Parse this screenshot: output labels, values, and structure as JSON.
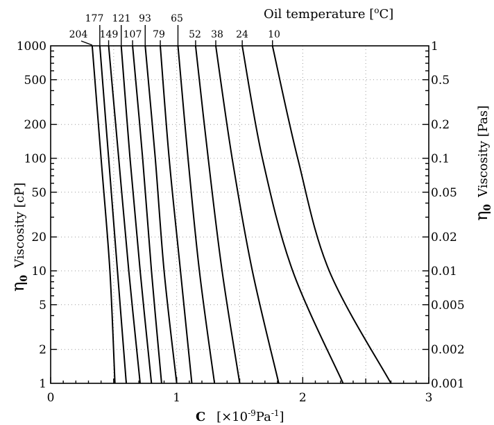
{
  "chart_data": {
    "type": "line",
    "x_axis": {
      "range": [
        0,
        3
      ],
      "ticks": [
        0,
        1,
        2,
        3
      ],
      "tick_labels": [
        "0",
        "1",
        "2",
        "3"
      ],
      "label_symbol": "C",
      "label_unit": "[×10",
      "label_exp": "-9",
      "label_unit2": "Pa",
      "label_exp2": "-1",
      "label_close": "]"
    },
    "y_left": {
      "scale": "log",
      "range": [
        1,
        1000
      ],
      "ticks": [
        1,
        2,
        5,
        10,
        20,
        50,
        100,
        200,
        500,
        1000
      ],
      "tick_labels": [
        "1",
        "2",
        "5",
        "10",
        "20",
        "50",
        "100",
        "200",
        "500",
        "1000"
      ],
      "label_symbol": "η",
      "label_sub": "0",
      "label_text": "Viscosity [cP]"
    },
    "y_right": {
      "scale": "log",
      "range": [
        0.001,
        1
      ],
      "ticks": [
        0.001,
        0.002,
        0.005,
        0.01,
        0.02,
        0.05,
        0.1,
        0.2,
        0.5,
        1
      ],
      "tick_labels": [
        "0.001",
        "0.002",
        "0.005",
        "0.01",
        "0.02",
        "0.05",
        "0.1",
        "0.2",
        "0.5",
        "1"
      ],
      "label_symbol": "η",
      "label_sub": "0",
      "label_text": "Viscosity [Pas]"
    },
    "top_title": "Oil temperature [",
    "top_title_sup": "o",
    "top_title_end": "C]",
    "grid": true,
    "series": [
      {
        "label": "204",
        "points": [
          [
            0.33,
            1000
          ],
          [
            0.4,
            100
          ],
          [
            0.47,
            10
          ],
          [
            0.51,
            1
          ]
        ]
      },
      {
        "label": "177",
        "points": [
          [
            0.39,
            1000
          ],
          [
            0.46,
            100
          ],
          [
            0.53,
            10
          ],
          [
            0.6,
            1
          ]
        ]
      },
      {
        "label": "149",
        "points": [
          [
            0.46,
            1000
          ],
          [
            0.54,
            100
          ],
          [
            0.62,
            10
          ],
          [
            0.71,
            1
          ]
        ]
      },
      {
        "label": "121",
        "points": [
          [
            0.56,
            1000
          ],
          [
            0.63,
            100
          ],
          [
            0.71,
            10
          ],
          [
            0.8,
            1
          ]
        ]
      },
      {
        "label": "107",
        "points": [
          [
            0.65,
            1000
          ],
          [
            0.73,
            100
          ],
          [
            0.8,
            10
          ],
          [
            0.88,
            1
          ]
        ]
      },
      {
        "label": "93",
        "points": [
          [
            0.75,
            1000
          ],
          [
            0.83,
            100
          ],
          [
            0.9,
            10
          ],
          [
            1.0,
            1
          ]
        ]
      },
      {
        "label": "79",
        "points": [
          [
            0.87,
            1000
          ],
          [
            0.94,
            100
          ],
          [
            1.03,
            10
          ],
          [
            1.12,
            1
          ]
        ]
      },
      {
        "label": "65",
        "points": [
          [
            1.01,
            1000
          ],
          [
            1.09,
            100
          ],
          [
            1.18,
            10
          ],
          [
            1.3,
            1
          ]
        ]
      },
      {
        "label": "52",
        "points": [
          [
            1.15,
            1000
          ],
          [
            1.25,
            100
          ],
          [
            1.36,
            10
          ],
          [
            1.5,
            1
          ]
        ]
      },
      {
        "label": "38",
        "points": [
          [
            1.31,
            1000
          ],
          [
            1.44,
            100
          ],
          [
            1.6,
            10
          ],
          [
            1.81,
            1
          ]
        ]
      },
      {
        "label": "24",
        "points": [
          [
            1.52,
            1000
          ],
          [
            1.68,
            100
          ],
          [
            1.92,
            10
          ],
          [
            2.32,
            1
          ]
        ]
      },
      {
        "label": "10",
        "points": [
          [
            1.76,
            1000
          ],
          [
            1.96,
            100
          ],
          [
            2.21,
            10
          ],
          [
            2.7,
            1
          ]
        ]
      }
    ]
  }
}
